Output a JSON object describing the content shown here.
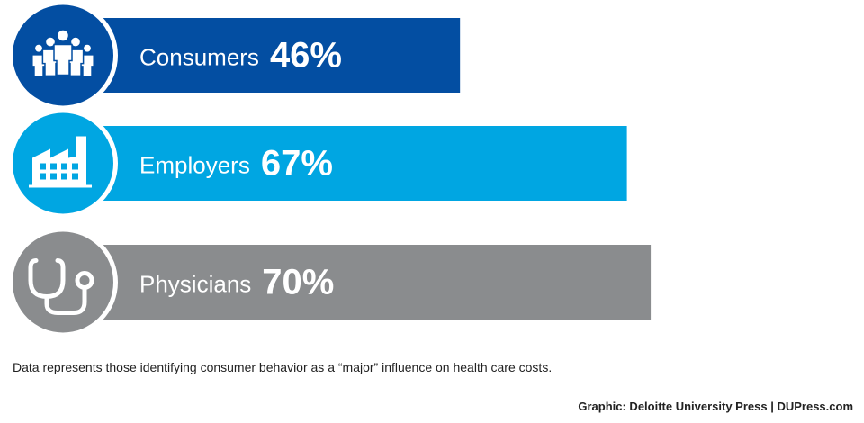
{
  "chart_data": {
    "type": "bar",
    "orientation": "horizontal",
    "categories": [
      "Consumers",
      "Employers",
      "Physicians"
    ],
    "values": [
      46,
      67,
      70
    ],
    "value_labels": [
      "46%",
      "67%",
      "70%"
    ],
    "icons": [
      "people-icon",
      "factory-icon",
      "stethoscope-icon"
    ],
    "colors": [
      "#034ea2",
      "#00a6e2",
      "#8a8c8e"
    ],
    "xlim": [
      0,
      100
    ],
    "grid": false,
    "legend": "none"
  },
  "footnote": "Data represents those identifying consumer behavior as a “major” influence on health care costs.",
  "credit": "Graphic: Deloitte University Press  |  DUPress.com"
}
